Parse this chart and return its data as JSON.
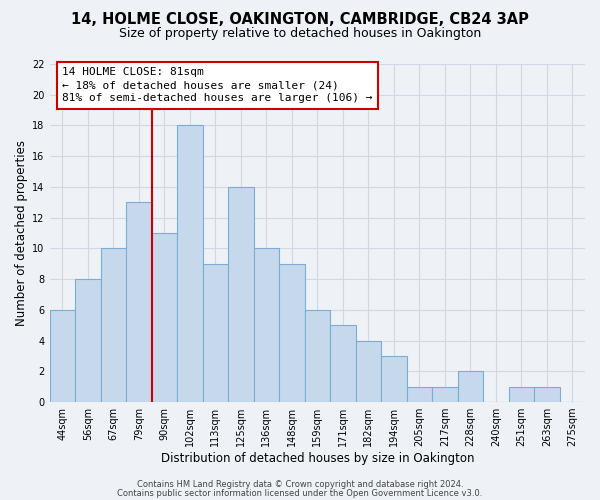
{
  "title": "14, HOLME CLOSE, OAKINGTON, CAMBRIDGE, CB24 3AP",
  "subtitle": "Size of property relative to detached houses in Oakington",
  "xlabel": "Distribution of detached houses by size in Oakington",
  "ylabel": "Number of detached properties",
  "bar_labels": [
    "44sqm",
    "56sqm",
    "67sqm",
    "79sqm",
    "90sqm",
    "102sqm",
    "113sqm",
    "125sqm",
    "136sqm",
    "148sqm",
    "159sqm",
    "171sqm",
    "182sqm",
    "194sqm",
    "205sqm",
    "217sqm",
    "228sqm",
    "240sqm",
    "251sqm",
    "263sqm",
    "275sqm"
  ],
  "bar_values": [
    6,
    8,
    10,
    13,
    11,
    18,
    9,
    14,
    10,
    9,
    6,
    5,
    4,
    3,
    1,
    1,
    2,
    0,
    1,
    1,
    0
  ],
  "bar_color": "#c6d9ec",
  "bar_edge_color": "#7aadd4",
  "ylim": [
    0,
    22
  ],
  "yticks": [
    0,
    2,
    4,
    6,
    8,
    10,
    12,
    14,
    16,
    18,
    20,
    22
  ],
  "vline_x_index": 3,
  "vline_color": "#cc0000",
  "annotation_title": "14 HOLME CLOSE: 81sqm",
  "annotation_line1": "← 18% of detached houses are smaller (24)",
  "annotation_line2": "81% of semi-detached houses are larger (106) →",
  "annotation_box_facecolor": "#ffffff",
  "annotation_box_edgecolor": "#cc0000",
  "footer1": "Contains HM Land Registry data © Crown copyright and database right 2024.",
  "footer2": "Contains public sector information licensed under the Open Government Licence v3.0.",
  "bg_color": "#eef2f7",
  "grid_color": "#d0d8e4",
  "title_fontsize": 10.5,
  "subtitle_fontsize": 9,
  "axis_label_fontsize": 8.5,
  "tick_fontsize": 7,
  "ann_fontsize": 8,
  "footer_fontsize": 6
}
